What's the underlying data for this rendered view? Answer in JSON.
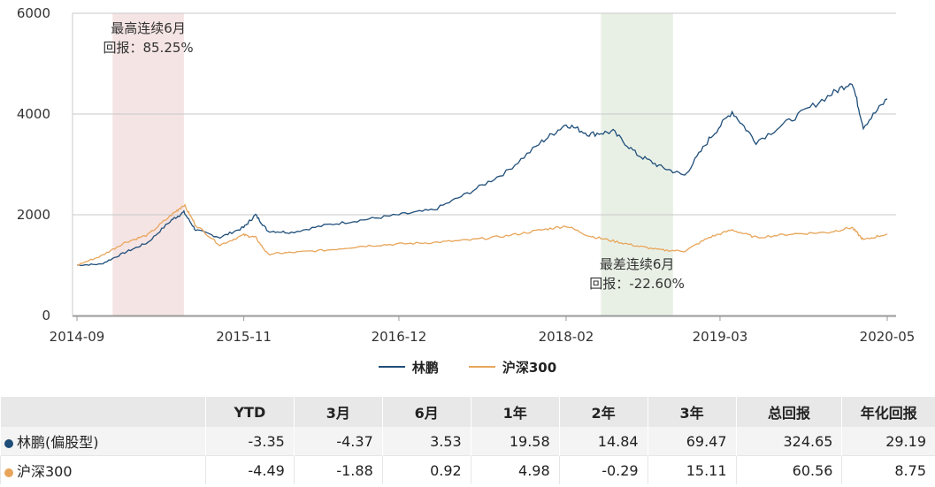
{
  "chart_data": {
    "type": "line",
    "x_ticks": [
      "2014-09",
      "2015-11",
      "2016-12",
      "2018-02",
      "2019-03",
      "2020-05"
    ],
    "ylim": [
      0,
      6000
    ],
    "y_ticks": [
      "0",
      "2000",
      "4000",
      "6000"
    ],
    "grid": "horizontal",
    "legend_position": "bottom",
    "series": [
      {
        "name": "林鹏",
        "color": "#1f4e79",
        "points": [
          [
            "2014-09",
            1000
          ],
          [
            "2014-11",
            1020
          ],
          [
            "2015-01",
            1250
          ],
          [
            "2015-03",
            1450
          ],
          [
            "2015-05",
            1900
          ],
          [
            "2015-06",
            2050
          ],
          [
            "2015-07",
            1700
          ],
          [
            "2015-09",
            1550
          ],
          [
            "2015-11",
            1750
          ],
          [
            "2015-12",
            2000
          ],
          [
            "2016-01",
            1680
          ],
          [
            "2016-03",
            1650
          ],
          [
            "2016-06",
            1800
          ],
          [
            "2016-09",
            1900
          ],
          [
            "2016-12",
            2000
          ],
          [
            "2017-03",
            2100
          ],
          [
            "2017-06",
            2450
          ],
          [
            "2017-09",
            2850
          ],
          [
            "2017-12",
            3450
          ],
          [
            "2018-02",
            3800
          ],
          [
            "2018-04",
            3600
          ],
          [
            "2018-06",
            3650
          ],
          [
            "2018-08",
            3200
          ],
          [
            "2018-10",
            2950
          ],
          [
            "2018-12",
            2780
          ],
          [
            "2019-02",
            3500
          ],
          [
            "2019-04",
            4050
          ],
          [
            "2019-06",
            3450
          ],
          [
            "2019-09",
            3900
          ],
          [
            "2019-12",
            4350
          ],
          [
            "2020-02",
            4650
          ],
          [
            "2020-03",
            3750
          ],
          [
            "2020-05",
            4300
          ]
        ]
      },
      {
        "name": "沪深300",
        "color": "#e8a55a",
        "points": [
          [
            "2014-09",
            1000
          ],
          [
            "2014-11",
            1180
          ],
          [
            "2015-01",
            1450
          ],
          [
            "2015-03",
            1600
          ],
          [
            "2015-05",
            2000
          ],
          [
            "2015-06",
            2200
          ],
          [
            "2015-07",
            1800
          ],
          [
            "2015-09",
            1400
          ],
          [
            "2015-11",
            1600
          ],
          [
            "2015-12",
            1550
          ],
          [
            "2016-01",
            1220
          ],
          [
            "2016-03",
            1250
          ],
          [
            "2016-06",
            1300
          ],
          [
            "2016-09",
            1380
          ],
          [
            "2016-12",
            1420
          ],
          [
            "2017-03",
            1450
          ],
          [
            "2017-06",
            1500
          ],
          [
            "2017-09",
            1580
          ],
          [
            "2017-12",
            1700
          ],
          [
            "2018-02",
            1780
          ],
          [
            "2018-04",
            1580
          ],
          [
            "2018-06",
            1480
          ],
          [
            "2018-08",
            1380
          ],
          [
            "2018-10",
            1300
          ],
          [
            "2018-12",
            1280
          ],
          [
            "2019-02",
            1550
          ],
          [
            "2019-04",
            1700
          ],
          [
            "2019-06",
            1550
          ],
          [
            "2019-09",
            1620
          ],
          [
            "2019-12",
            1650
          ],
          [
            "2020-02",
            1750
          ],
          [
            "2020-03",
            1500
          ],
          [
            "2020-05",
            1620
          ]
        ]
      }
    ],
    "highlights": [
      {
        "from": "2014-12",
        "to": "2015-06",
        "color": "#f5e4e4",
        "label_color": "#b22222",
        "label1": "最高连续6月",
        "label2": "回报：85.25%"
      },
      {
        "from": "2018-05",
        "to": "2018-11",
        "color": "#e8f0e6",
        "label_color": "#3a5f3a",
        "label1": "最差连续6月",
        "label2": "回报：-22.60%"
      }
    ]
  },
  "legend": {
    "series_a": "林鹏",
    "series_b": "沪深300"
  },
  "table": {
    "headers": [
      "",
      "YTD",
      "3月",
      "6月",
      "1年",
      "2年",
      "3年",
      "总回报",
      "年化回报"
    ],
    "rows": [
      {
        "name": "林鹏(偏股型)",
        "dot_color": "#1f4e79",
        "values": [
          "-3.35",
          "-4.37",
          "3.53",
          "19.58",
          "14.84",
          "69.47",
          "324.65",
          "29.19"
        ]
      },
      {
        "name": "沪深300",
        "dot_color": "#e8a55a",
        "values": [
          "-4.49",
          "-1.88",
          "0.92",
          "4.98",
          "-0.29",
          "15.11",
          "60.56",
          "8.75"
        ]
      }
    ]
  }
}
